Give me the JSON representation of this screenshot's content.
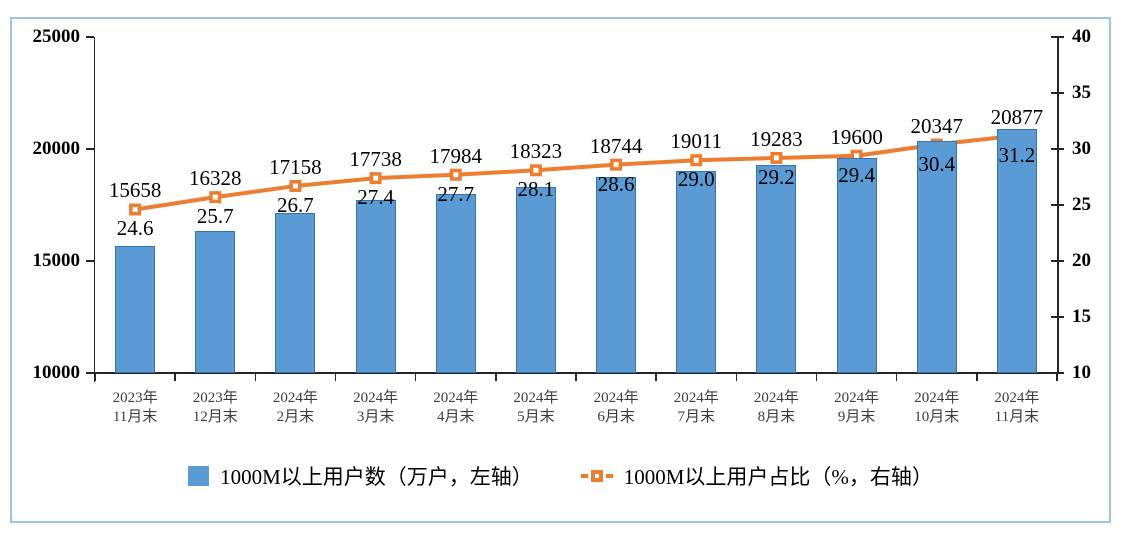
{
  "chart_data": {
    "type": "bar",
    "title": "",
    "categories": [
      "2023年\n11月末",
      "2023年\n12月末",
      "2024年\n2月末",
      "2024年\n3月末",
      "2024年\n4月末",
      "2024年\n5月末",
      "2024年\n6月末",
      "2024年\n7月末",
      "2024年\n8月末",
      "2024年\n9月末",
      "2024年\n10月末",
      "2024年\n11月末"
    ],
    "series": [
      {
        "name": "1000M以上用户数（万户，左轴）",
        "type": "bar",
        "axis": "left",
        "values": [
          15658,
          16328,
          17158,
          17738,
          17984,
          18323,
          18744,
          19011,
          19283,
          19600,
          20347,
          20877
        ],
        "labels": [
          "15658",
          "16328",
          "17158",
          "17738",
          "17984",
          "18323",
          "18744",
          "19011",
          "19283",
          "19600",
          "20347",
          "20877"
        ],
        "fill_color": "#5B9BD5",
        "border_color": "#2E75B6"
      },
      {
        "name": "1000M以上用户占比（%，右轴）",
        "type": "line",
        "axis": "right",
        "values": [
          24.6,
          25.7,
          26.7,
          27.4,
          27.7,
          28.1,
          28.6,
          29.0,
          29.2,
          29.4,
          30.4,
          31.2
        ],
        "labels": [
          "24.6",
          "25.7",
          "26.7",
          "27.4",
          "27.7",
          "28.1",
          "28.6",
          "29.0",
          "29.2",
          "29.4",
          "30.4",
          "31.2"
        ],
        "color": "#ED7D31",
        "marker": "square-with-white-center",
        "line_style": "dashed"
      }
    ],
    "left_axis": {
      "min": 10000,
      "max": 25000,
      "ticks": [
        10000,
        15000,
        20000,
        25000
      ]
    },
    "right_axis": {
      "min": 10,
      "max": 40,
      "ticks": [
        10,
        15,
        20,
        25,
        30,
        35,
        40
      ]
    },
    "legend_position": "bottom",
    "grid": false
  },
  "frame_color": "#9DC3E6",
  "axis_color": "#262626"
}
